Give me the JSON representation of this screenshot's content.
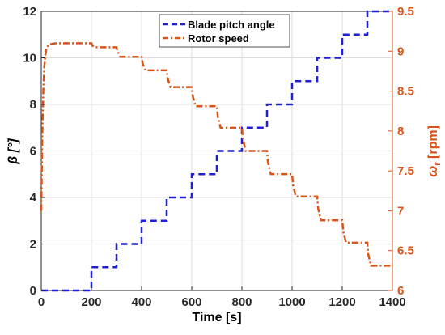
{
  "chart_data": {
    "type": "line",
    "xlabel": "Time [s]",
    "ylabel_left": "β [°]",
    "ylabel_right": "ω_r [rpm]",
    "xlim": [
      0,
      1400
    ],
    "ylim_left": [
      0,
      12
    ],
    "ylim_right": [
      6,
      9.5
    ],
    "x_ticks": [
      "0",
      "200",
      "400",
      "600",
      "800",
      "1000",
      "1200",
      "1400"
    ],
    "y_left_ticks": [
      "0",
      "2",
      "4",
      "6",
      "8",
      "10",
      "12"
    ],
    "y_right_ticks": [
      "6",
      "6.5",
      "7",
      "7.5",
      "8",
      "8.5",
      "9",
      "9.5"
    ],
    "grid": true,
    "legend_position": "top-center",
    "colors": {
      "blade": "#1f1fd6",
      "rotor": "#d9541a"
    },
    "series": [
      {
        "name": "Blade pitch angle",
        "axis": "left",
        "style": "dashed",
        "x": [
          0,
          200,
          200,
          300,
          300,
          400,
          400,
          500,
          500,
          600,
          600,
          700,
          700,
          800,
          800,
          900,
          900,
          1000,
          1000,
          1100,
          1100,
          1200,
          1200,
          1300,
          1300,
          1400
        ],
        "y": [
          0,
          0,
          1,
          1,
          2,
          2,
          3,
          3,
          4,
          4,
          5,
          5,
          6,
          6,
          7,
          7,
          8,
          8,
          9,
          9,
          10,
          10,
          11,
          11,
          12,
          12
        ]
      },
      {
        "name": "Rotor speed",
        "axis": "right",
        "style": "dashdot",
        "x": [
          0,
          4,
          8,
          12,
          16,
          20,
          25,
          30,
          40,
          60,
          200,
          204,
          215,
          300,
          304,
          315,
          400,
          404,
          415,
          500,
          504,
          515,
          600,
          604,
          615,
          700,
          704,
          715,
          800,
          804,
          815,
          900,
          904,
          915,
          1000,
          1004,
          1015,
          1100,
          1104,
          1115,
          1200,
          1204,
          1215,
          1300,
          1304,
          1315,
          1400
        ],
        "y": [
          7.0,
          7.9,
          8.5,
          8.8,
          8.95,
          9.02,
          9.06,
          9.08,
          9.09,
          9.1,
          9.1,
          9.07,
          9.05,
          9.05,
          9.0,
          8.93,
          8.93,
          8.85,
          8.76,
          8.76,
          8.66,
          8.55,
          8.55,
          8.44,
          8.31,
          8.31,
          8.18,
          8.04,
          8.04,
          7.9,
          7.75,
          7.75,
          7.6,
          7.46,
          7.46,
          7.32,
          7.18,
          7.18,
          7.03,
          6.88,
          6.88,
          6.74,
          6.6,
          6.6,
          6.45,
          6.31,
          6.31
        ]
      }
    ]
  }
}
